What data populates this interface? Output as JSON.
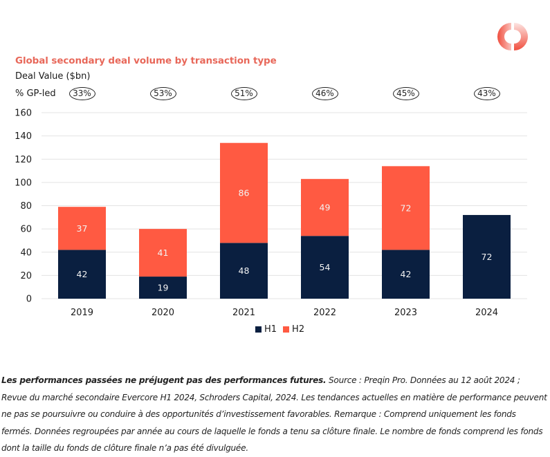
{
  "logo": {
    "name": "schroders-capital-logo",
    "colors": [
      "#f04e3e",
      "#ffffff"
    ]
  },
  "chart_data": {
    "type": "bar",
    "stacked": true,
    "title": "Global secondary deal volume by transaction type",
    "ylabel": "Deal Value ($bn)",
    "xlabel": "",
    "gp_led_label": "% GP-led",
    "categories": [
      "2019",
      "2020",
      "2021",
      "2022",
      "2023",
      "2024"
    ],
    "gp_led_pct": [
      "33%",
      "53%",
      "51%",
      "46%",
      "45%",
      "43%"
    ],
    "series": [
      {
        "name": "H1",
        "color": "#0a1f40",
        "values": [
          42,
          19,
          48,
          54,
          42,
          72
        ]
      },
      {
        "name": "H2",
        "color": "#ff5a42",
        "values": [
          37,
          41,
          86,
          49,
          72,
          null
        ]
      }
    ],
    "ylim": [
      0,
      160
    ],
    "yticks": [
      0,
      20,
      40,
      60,
      80,
      100,
      120,
      140,
      160
    ],
    "grid": true,
    "legend": "bottom-center"
  },
  "legend": {
    "h1": "H1",
    "h2": "H2"
  },
  "footnote": {
    "bold": "Les performances passées ne préjugent pas des performances futures.",
    "text": " Source : Preqin Pro. Données au 12 août 2024 ; Revue du marché secondaire Evercore H1 2024, Schroders Capital, 2024. Les tendances actuelles en matière de performance peuvent ne pas se poursuivre ou conduire à des opportunités d’investissement favorables. Remarque : Comprend uniquement les fonds fermés. Données regroupées par année au cours de laquelle le fonds a tenu sa clôture finale. Le nombre de fonds comprend les fonds dont la taille du fonds de clôture finale n’a pas été divulguée."
  }
}
